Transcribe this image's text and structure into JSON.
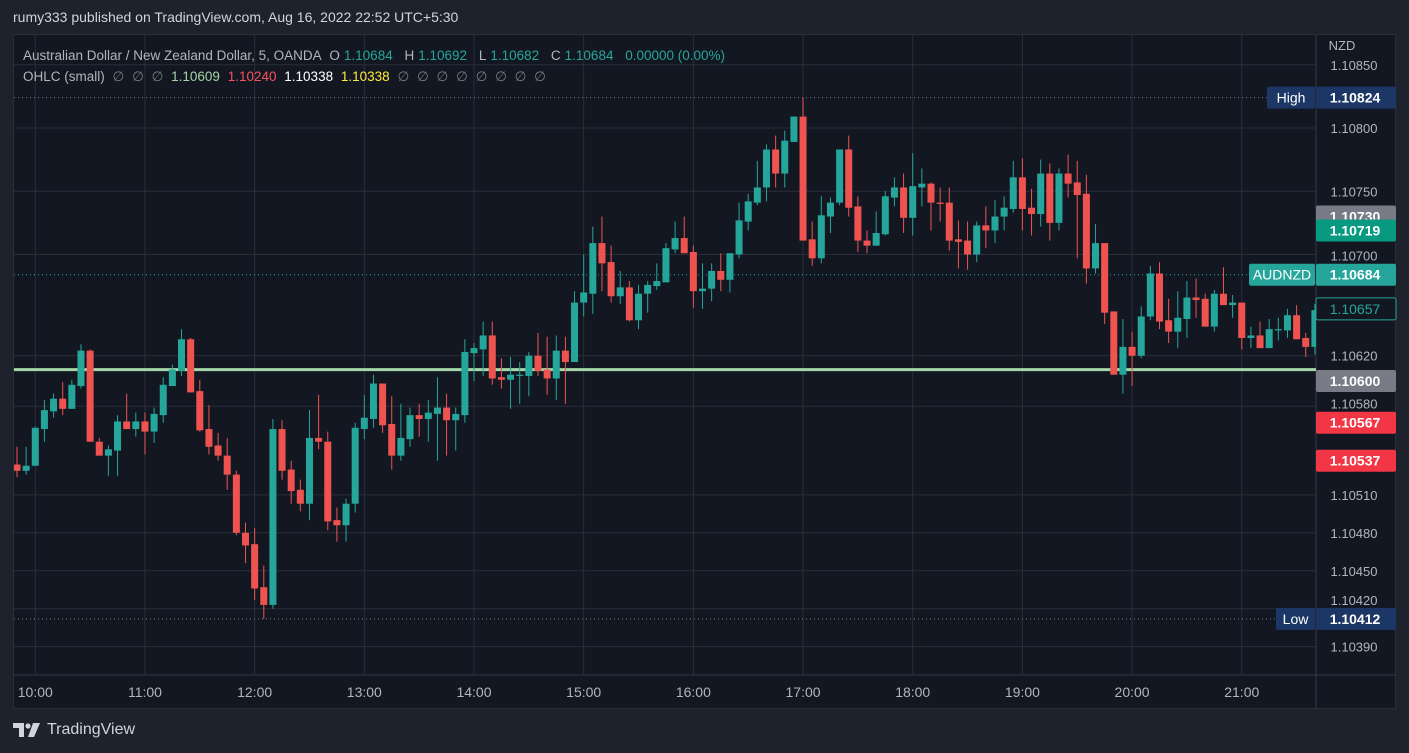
{
  "published": "rumy333 published on TradingView.com, Aug 16, 2022 22:52 UTC+5:30",
  "legend": {
    "symbol": "Australian Dollar / New Zealand Dollar, 5, OANDA",
    "o_label": "O",
    "o": "1.10684",
    "h_label": "H",
    "h": "1.10692",
    "l_label": "L",
    "l": "1.10682",
    "c_label": "C",
    "c": "1.10684",
    "change": "0.00000 (0.00%)",
    "indicator": "OHLC (small)",
    "ind_null_a": [
      "∅",
      "∅",
      "∅"
    ],
    "ind_v1": "1.10609",
    "ind_v2": "1.10240",
    "ind_v3": "1.10338",
    "ind_v4": "1.10338",
    "ind_null_b": [
      "∅",
      "∅",
      "∅",
      "∅",
      "∅",
      "∅",
      "∅",
      "∅"
    ]
  },
  "footer": {
    "brand": "TradingView"
  },
  "colors": {
    "up": "#26a69a",
    "down": "#ef5350",
    "grid": "#2a2e39",
    "level_line": "#a5d6a7",
    "high_low_label": "#1c3766",
    "symbol_label": "#26a69a"
  },
  "chart_data": {
    "type": "candlestick",
    "currency": "NZD",
    "interval_minutes": 5,
    "ylim": [
      1.1036,
      1.1086
    ],
    "grid": true,
    "y_ticks": [
      "1.10850",
      "1.10800",
      "1.10750",
      "1.10700",
      "1.10620",
      "1.10580",
      "1.10510",
      "1.10480",
      "1.10450",
      "1.10420",
      "1.10390"
    ],
    "x_ticks": [
      "10:00",
      "11:00",
      "12:00",
      "13:00",
      "14:00",
      "15:00",
      "16:00",
      "17:00",
      "18:00",
      "19:00",
      "20:00",
      "21:00"
    ],
    "level_line": 1.10609,
    "markers": [
      {
        "label": "High",
        "value": "1.10824",
        "style": "navy",
        "line": "dotted"
      },
      {
        "label": "",
        "value": "1.10730",
        "style": "gray"
      },
      {
        "label": "",
        "value": "1.10719",
        "style": "green"
      },
      {
        "label": "AUDNZD",
        "value": "1.10684",
        "style": "teal",
        "line": "dotted-teal"
      },
      {
        "label": "",
        "value": "1.10657",
        "style": "outline"
      },
      {
        "label": "",
        "value": "1.10600",
        "style": "gray"
      },
      {
        "label": "",
        "value": "1.10567",
        "style": "red"
      },
      {
        "label": "",
        "value": "1.10537",
        "style": "red"
      },
      {
        "label": "Low",
        "value": "1.10412",
        "style": "navy",
        "line": "dotted"
      }
    ],
    "columns": [
      "time",
      "open",
      "high",
      "low",
      "close"
    ],
    "candles": [
      [
        "09:50",
        1.10534,
        1.10548,
        1.10524,
        1.10529
      ],
      [
        "09:55",
        1.10529,
        1.10548,
        1.10526,
        1.10533
      ],
      [
        "10:00",
        1.10533,
        1.10564,
        1.10533,
        1.10563
      ],
      [
        "10:05",
        1.10562,
        1.10585,
        1.10552,
        1.10577
      ],
      [
        "10:10",
        1.10576,
        1.1059,
        1.10571,
        1.10586
      ],
      [
        "10:15",
        1.10586,
        1.10599,
        1.10573,
        1.10578
      ],
      [
        "10:20",
        1.10578,
        1.10601,
        1.10578,
        1.10597
      ],
      [
        "10:25",
        1.10596,
        1.10629,
        1.10594,
        1.10624
      ],
      [
        "10:30",
        1.10624,
        1.10625,
        1.10552,
        1.10552
      ],
      [
        "10:35",
        1.10552,
        1.10555,
        1.10541,
        1.10541
      ],
      [
        "10:40",
        1.10541,
        1.10549,
        1.10525,
        1.10546
      ],
      [
        "10:45",
        1.10545,
        1.10573,
        1.10525,
        1.10568
      ],
      [
        "10:50",
        1.10568,
        1.1059,
        1.10562,
        1.10562
      ],
      [
        "10:55",
        1.10562,
        1.10575,
        1.10556,
        1.10568
      ],
      [
        "11:00",
        1.10568,
        1.10575,
        1.10542,
        1.1056
      ],
      [
        "11:05",
        1.1056,
        1.10579,
        1.10551,
        1.10574
      ],
      [
        "11:10",
        1.10573,
        1.10603,
        1.10567,
        1.10597
      ],
      [
        "11:15",
        1.10596,
        1.10613,
        1.10596,
        1.10609
      ],
      [
        "11:20",
        1.10608,
        1.10641,
        1.10604,
        1.10633
      ],
      [
        "11:25",
        1.10633,
        1.10634,
        1.10591,
        1.10591
      ],
      [
        "11:30",
        1.10592,
        1.10601,
        1.1056,
        1.10561
      ],
      [
        "11:35",
        1.10562,
        1.10581,
        1.10542,
        1.10548
      ],
      [
        "11:40",
        1.10549,
        1.10559,
        1.10537,
        1.10541
      ],
      [
        "11:45",
        1.10541,
        1.10555,
        1.10514,
        1.10526
      ],
      [
        "11:50",
        1.10526,
        1.10529,
        1.10478,
        1.1048
      ],
      [
        "11:55",
        1.1048,
        1.10488,
        1.10456,
        1.1047
      ],
      [
        "12:00",
        1.10471,
        1.10484,
        1.10427,
        1.10436
      ],
      [
        "12:05",
        1.10437,
        1.10454,
        1.10412,
        1.10423
      ],
      [
        "12:10",
        1.10423,
        1.1057,
        1.1042,
        1.10562
      ],
      [
        "12:15",
        1.10562,
        1.10569,
        1.10522,
        1.10529
      ],
      [
        "12:20",
        1.1053,
        1.10537,
        1.10503,
        1.10513
      ],
      [
        "12:25",
        1.10514,
        1.10522,
        1.10497,
        1.10503
      ],
      [
        "12:30",
        1.10503,
        1.10577,
        1.1049,
        1.10555
      ],
      [
        "12:35",
        1.10555,
        1.10589,
        1.10546,
        1.10552
      ],
      [
        "12:40",
        1.10552,
        1.1056,
        1.10482,
        1.10489
      ],
      [
        "12:45",
        1.1049,
        1.105,
        1.10473,
        1.10486
      ],
      [
        "12:50",
        1.10486,
        1.10507,
        1.10473,
        1.10503
      ],
      [
        "12:55",
        1.10503,
        1.10567,
        1.10496,
        1.10563
      ],
      [
        "13:00",
        1.10562,
        1.10589,
        1.10554,
        1.10571
      ],
      [
        "13:05",
        1.1057,
        1.10605,
        1.10563,
        1.10598
      ],
      [
        "13:10",
        1.10598,
        1.10598,
        1.10559,
        1.10565
      ],
      [
        "13:15",
        1.10566,
        1.10588,
        1.1053,
        1.10541
      ],
      [
        "13:20",
        1.10541,
        1.10582,
        1.10537,
        1.10555
      ],
      [
        "13:25",
        1.10554,
        1.10579,
        1.10548,
        1.10573
      ],
      [
        "13:30",
        1.10573,
        1.10582,
        1.10556,
        1.1057
      ],
      [
        "13:35",
        1.1057,
        1.10585,
        1.10552,
        1.10575
      ],
      [
        "13:40",
        1.10574,
        1.10603,
        1.10537,
        1.10579
      ],
      [
        "13:45",
        1.10579,
        1.1059,
        1.10541,
        1.10569
      ],
      [
        "13:50",
        1.10569,
        1.10579,
        1.10545,
        1.10574
      ],
      [
        "13:55",
        1.10573,
        1.10633,
        1.10567,
        1.10623
      ],
      [
        "14:00",
        1.10622,
        1.1063,
        1.106,
        1.10626
      ],
      [
        "14:05",
        1.10625,
        1.10647,
        1.10604,
        1.10636
      ],
      [
        "14:10",
        1.10636,
        1.10647,
        1.10597,
        1.10602
      ],
      [
        "14:15",
        1.10603,
        1.10618,
        1.10594,
        1.10601
      ],
      [
        "14:20",
        1.10601,
        1.10619,
        1.10578,
        1.10605
      ],
      [
        "14:25",
        1.10604,
        1.10615,
        1.10582,
        1.10605
      ],
      [
        "14:30",
        1.10604,
        1.10623,
        1.10588,
        1.1062
      ],
      [
        "14:35",
        1.1062,
        1.10638,
        1.10604,
        1.10608
      ],
      [
        "14:40",
        1.10609,
        1.10635,
        1.10589,
        1.10602
      ],
      [
        "14:45",
        1.10602,
        1.10636,
        1.10585,
        1.10624
      ],
      [
        "14:50",
        1.10624,
        1.10635,
        1.10582,
        1.10615
      ],
      [
        "14:55",
        1.10615,
        1.10671,
        1.10615,
        1.10662
      ],
      [
        "15:00",
        1.10662,
        1.107,
        1.10651,
        1.1067
      ],
      [
        "15:05",
        1.10669,
        1.10722,
        1.10653,
        1.10709
      ],
      [
        "15:10",
        1.10709,
        1.1073,
        1.10671,
        1.10693
      ],
      [
        "15:15",
        1.10694,
        1.10707,
        1.10662,
        1.10667
      ],
      [
        "15:20",
        1.10667,
        1.10687,
        1.10661,
        1.10674
      ],
      [
        "15:25",
        1.10674,
        1.10679,
        1.10647,
        1.10648
      ],
      [
        "15:30",
        1.10648,
        1.10676,
        1.10641,
        1.10669
      ],
      [
        "15:35",
        1.10669,
        1.10679,
        1.10654,
        1.10676
      ],
      [
        "15:40",
        1.10675,
        1.10693,
        1.10672,
        1.10679
      ],
      [
        "15:45",
        1.10678,
        1.10709,
        1.10678,
        1.10705
      ],
      [
        "15:50",
        1.10704,
        1.10726,
        1.10701,
        1.10713
      ],
      [
        "15:55",
        1.10713,
        1.1073,
        1.10701,
        1.10701
      ],
      [
        "16:00",
        1.10702,
        1.10707,
        1.10658,
        1.10671
      ],
      [
        "16:05",
        1.10671,
        1.10693,
        1.10657,
        1.10673
      ],
      [
        "16:10",
        1.10673,
        1.10693,
        1.10663,
        1.10687
      ],
      [
        "16:15",
        1.10687,
        1.10701,
        1.10671,
        1.1068
      ],
      [
        "16:20",
        1.1068,
        1.10701,
        1.1067,
        1.10701
      ],
      [
        "16:25",
        1.107,
        1.10741,
        1.10697,
        1.10727
      ],
      [
        "16:30",
        1.10726,
        1.10748,
        1.10719,
        1.10742
      ],
      [
        "16:35",
        1.10741,
        1.10774,
        1.10739,
        1.10753
      ],
      [
        "16:40",
        1.10753,
        1.10787,
        1.10742,
        1.10783
      ],
      [
        "16:45",
        1.10783,
        1.10794,
        1.10753,
        1.10764
      ],
      [
        "16:50",
        1.10764,
        1.10798,
        1.10753,
        1.1079
      ],
      [
        "16:55",
        1.10789,
        1.10809,
        1.10789,
        1.10809
      ],
      [
        "17:00",
        1.10809,
        1.10824,
        1.10711,
        1.10711
      ],
      [
        "17:05",
        1.10712,
        1.10726,
        1.10691,
        1.10697
      ],
      [
        "17:10",
        1.10697,
        1.10746,
        1.10693,
        1.10731
      ],
      [
        "17:15",
        1.1073,
        1.10745,
        1.10717,
        1.10741
      ],
      [
        "17:20",
        1.10741,
        1.10783,
        1.10739,
        1.10783
      ],
      [
        "17:25",
        1.10783,
        1.10794,
        1.1073,
        1.10737
      ],
      [
        "17:30",
        1.10738,
        1.10746,
        1.10702,
        1.10711
      ],
      [
        "17:35",
        1.10711,
        1.10719,
        1.10701,
        1.10707
      ],
      [
        "17:40",
        1.10707,
        1.10734,
        1.10707,
        1.10717
      ],
      [
        "17:45",
        1.10716,
        1.1075,
        1.10715,
        1.10746
      ],
      [
        "17:50",
        1.10745,
        1.10761,
        1.10738,
        1.10753
      ],
      [
        "17:55",
        1.10753,
        1.10764,
        1.10717,
        1.10729
      ],
      [
        "18:00",
        1.10729,
        1.1078,
        1.10715,
        1.10754
      ],
      [
        "18:05",
        1.10753,
        1.10768,
        1.10738,
        1.10756
      ],
      [
        "18:10",
        1.10756,
        1.10757,
        1.10719,
        1.10741
      ],
      [
        "18:15",
        1.10741,
        1.10753,
        1.10726,
        1.1074
      ],
      [
        "18:20",
        1.10741,
        1.10753,
        1.10703,
        1.10711
      ],
      [
        "18:25",
        1.10712,
        1.10727,
        1.10689,
        1.1071
      ],
      [
        "18:30",
        1.10711,
        1.10726,
        1.10688,
        1.107
      ],
      [
        "18:35",
        1.107,
        1.10726,
        1.10694,
        1.10723
      ],
      [
        "18:40",
        1.10723,
        1.10738,
        1.10705,
        1.10719
      ],
      [
        "18:45",
        1.10719,
        1.10743,
        1.10709,
        1.1073
      ],
      [
        "18:50",
        1.1073,
        1.10746,
        1.10719,
        1.10737
      ],
      [
        "18:55",
        1.10736,
        1.10774,
        1.10733,
        1.10761
      ],
      [
        "19:00",
        1.10761,
        1.10776,
        1.10719,
        1.10736
      ],
      [
        "19:05",
        1.10737,
        1.10752,
        1.10715,
        1.10732
      ],
      [
        "19:10",
        1.10732,
        1.10775,
        1.10722,
        1.10764
      ],
      [
        "19:15",
        1.10764,
        1.10772,
        1.10711,
        1.10725
      ],
      [
        "19:20",
        1.10725,
        1.10768,
        1.10719,
        1.10764
      ],
      [
        "19:25",
        1.10764,
        1.10779,
        1.10745,
        1.10756
      ],
      [
        "19:30",
        1.10757,
        1.10774,
        1.10697,
        1.10747
      ],
      [
        "19:35",
        1.10748,
        1.10763,
        1.10677,
        1.10689
      ],
      [
        "19:40",
        1.10689,
        1.10724,
        1.10685,
        1.10709
      ],
      [
        "19:45",
        1.10709,
        1.10709,
        1.10645,
        1.10654
      ],
      [
        "19:50",
        1.10655,
        1.10655,
        1.10605,
        1.10605
      ],
      [
        "19:55",
        1.10605,
        1.10649,
        1.1059,
        1.10627
      ],
      [
        "20:00",
        1.10627,
        1.10639,
        1.10596,
        1.1062
      ],
      [
        "20:05",
        1.1062,
        1.10659,
        1.10618,
        1.10651
      ],
      [
        "20:10",
        1.10651,
        1.10691,
        1.10648,
        1.10685
      ],
      [
        "20:15",
        1.10685,
        1.10694,
        1.10641,
        1.10647
      ],
      [
        "20:20",
        1.10648,
        1.10665,
        1.1063,
        1.10639
      ],
      [
        "20:25",
        1.10639,
        1.10671,
        1.10626,
        1.1065
      ],
      [
        "20:30",
        1.10649,
        1.10679,
        1.10634,
        1.10666
      ],
      [
        "20:35",
        1.10666,
        1.10681,
        1.1065,
        1.10664
      ],
      [
        "20:40",
        1.10665,
        1.10669,
        1.10643,
        1.10643
      ],
      [
        "20:45",
        1.10643,
        1.10672,
        1.10639,
        1.10669
      ],
      [
        "20:50",
        1.10669,
        1.1069,
        1.1066,
        1.1066
      ],
      [
        "20:55",
        1.1066,
        1.10668,
        1.1065,
        1.10662
      ],
      [
        "21:00",
        1.10662,
        1.10662,
        1.10625,
        1.10634
      ],
      [
        "21:05",
        1.10634,
        1.10643,
        1.10626,
        1.10636
      ],
      [
        "21:10",
        1.10636,
        1.10647,
        1.10626,
        1.10626
      ],
      [
        "21:15",
        1.10626,
        1.10649,
        1.10626,
        1.10641
      ],
      [
        "21:20",
        1.1064,
        1.1065,
        1.10632,
        1.10641
      ],
      [
        "21:25",
        1.1064,
        1.10657,
        1.10634,
        1.10652
      ],
      [
        "21:30",
        1.10652,
        1.1066,
        1.10633,
        1.10633
      ],
      [
        "21:35",
        1.10634,
        1.10638,
        1.10619,
        1.10627
      ],
      [
        "21:40",
        1.10627,
        1.10661,
        1.10621,
        1.10656
      ]
    ]
  }
}
